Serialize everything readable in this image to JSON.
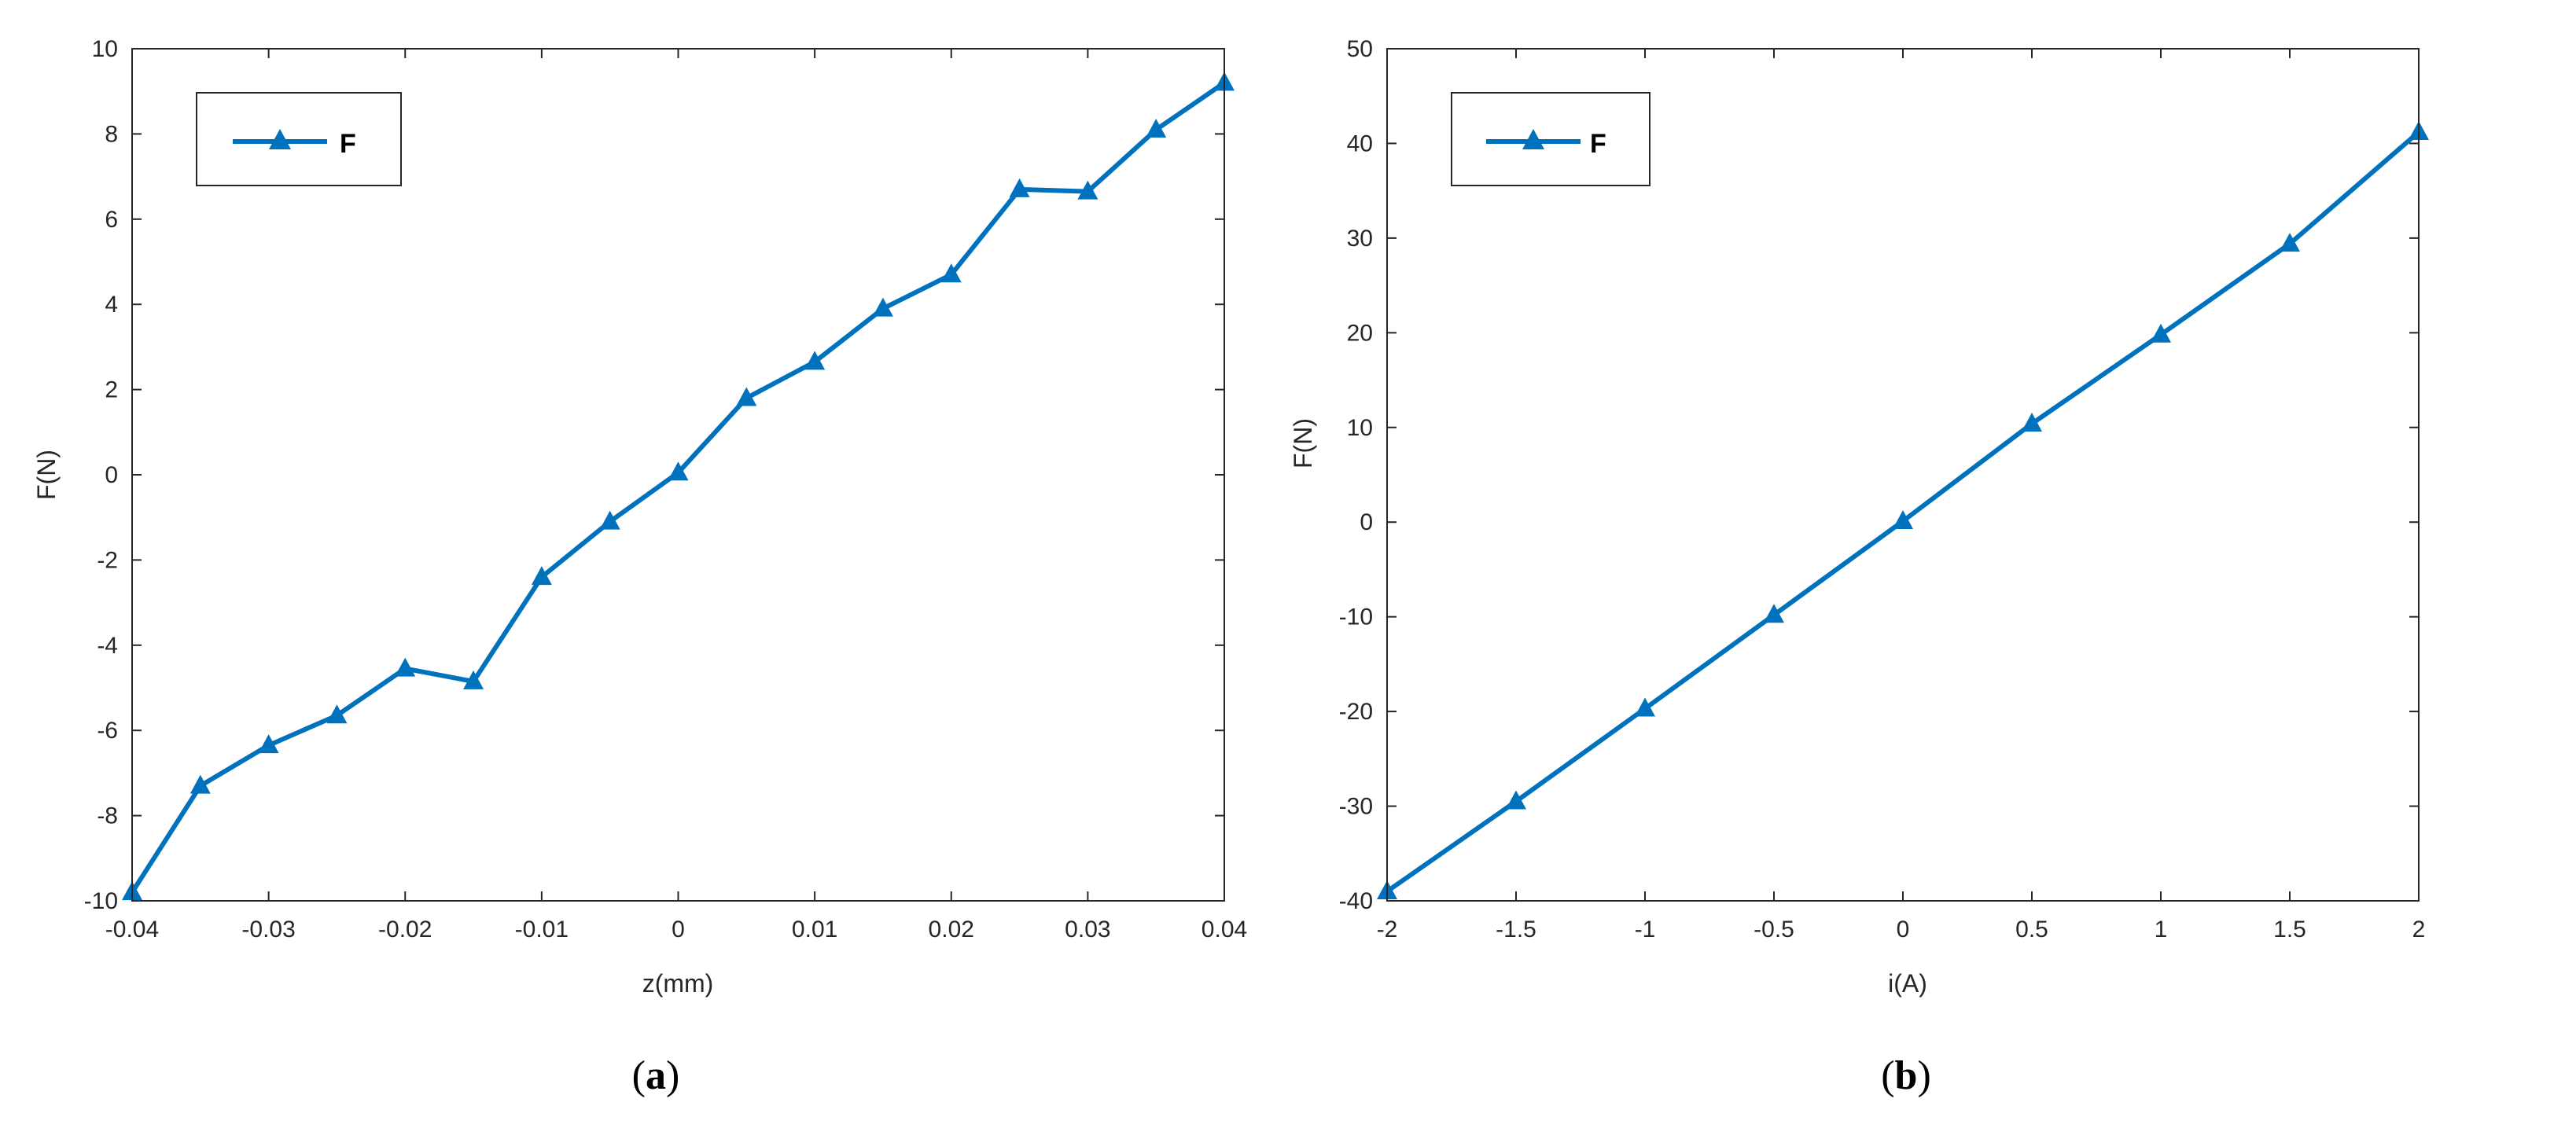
{
  "colors": {
    "series": "#0072BD",
    "axis": "#262626",
    "background": "#ffffff"
  },
  "chart_data": [
    {
      "type": "line",
      "panel_label": "a",
      "title": "",
      "xlabel": "z(mm)",
      "ylabel": "F(N)",
      "xlim": [
        -0.04,
        0.04
      ],
      "ylim": [
        -10,
        10
      ],
      "xticks": [
        -0.04,
        -0.03,
        -0.02,
        -0.01,
        0,
        0.01,
        0.02,
        0.03,
        0.04
      ],
      "xtick_labels": [
        "-0.04",
        "-0.03",
        "-0.02",
        "-0.01",
        "0",
        "0.01",
        "0.02",
        "0.03",
        "0.04"
      ],
      "yticks": [
        -10,
        -8,
        -6,
        -4,
        -2,
        0,
        2,
        4,
        6,
        8,
        10
      ],
      "ytick_labels": [
        "-10",
        "-8",
        "-6",
        "-4",
        "-2",
        "0",
        "2",
        "4",
        "6",
        "8",
        "10"
      ],
      "grid": false,
      "legend_position": "top-left",
      "series": [
        {
          "name": "F",
          "marker": "triangle",
          "x": [
            -0.04,
            -0.035,
            -0.03,
            -0.025,
            -0.02,
            -0.015,
            -0.01,
            -0.005,
            0,
            0.005,
            0.01,
            0.015,
            0.02,
            0.025,
            0.03,
            0.035,
            0.04
          ],
          "y": [
            -9.8,
            -7.3,
            -6.35,
            -5.65,
            -4.55,
            -4.85,
            -2.4,
            -1.1,
            0.05,
            1.8,
            2.65,
            3.9,
            4.7,
            6.7,
            6.65,
            8.1,
            9.2
          ]
        }
      ]
    },
    {
      "type": "line",
      "panel_label": "b",
      "title": "",
      "xlabel": "i(A)",
      "ylabel": "F(N)",
      "xlim": [
        -2,
        2
      ],
      "ylim": [
        -40,
        50
      ],
      "xticks": [
        -2,
        -1.5,
        -1,
        -0.5,
        0,
        0.5,
        1,
        1.5,
        2
      ],
      "xtick_labels": [
        "-2",
        "-1.5",
        "-1",
        "-0.5",
        "0",
        "0.5",
        "1",
        "1.5",
        "2"
      ],
      "yticks": [
        -40,
        -30,
        -20,
        -10,
        0,
        10,
        20,
        30,
        40,
        50
      ],
      "ytick_labels": [
        "-40",
        "-30",
        "-20",
        "-10",
        "0",
        "10",
        "20",
        "30",
        "40",
        "50"
      ],
      "grid": false,
      "legend_position": "top-left",
      "series": [
        {
          "name": "F",
          "marker": "triangle",
          "x": [
            -2,
            -1.5,
            -1,
            -0.5,
            0,
            0.5,
            1,
            1.5,
            2
          ],
          "y": [
            -39,
            -29.5,
            -19.7,
            -9.8,
            0.1,
            10.4,
            19.8,
            29.4,
            41.2
          ]
        }
      ]
    }
  ]
}
